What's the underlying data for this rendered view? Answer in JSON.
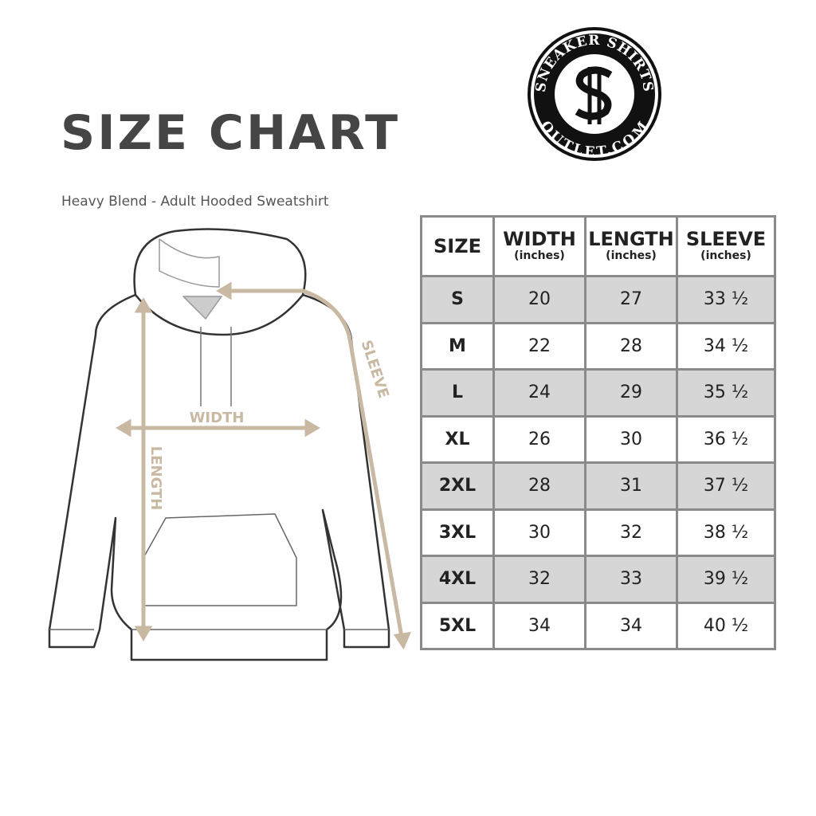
{
  "header": {
    "title": "SIZE CHART",
    "subtitle": "Heavy Blend - Adult Hooded Sweatshirt"
  },
  "logo": {
    "top_text": "SNEAKER SHIRTS",
    "bottom_text": "OUTLET.COM",
    "monogram": "SS"
  },
  "diagram": {
    "width_label": "WIDTH",
    "length_label": "LENGTH",
    "sleeve_label": "SLEEVE",
    "measure_color": "#c9b9a2"
  },
  "table": {
    "columns": [
      {
        "label": "SIZE",
        "unit": ""
      },
      {
        "label": "WIDTH",
        "unit": "(inches)"
      },
      {
        "label": "LENGTH",
        "unit": "(inches)"
      },
      {
        "label": "SLEEVE",
        "unit": "(inches)"
      }
    ],
    "rows": [
      [
        "S",
        "20",
        "27",
        "33 ½"
      ],
      [
        "M",
        "22",
        "28",
        "34 ½"
      ],
      [
        "L",
        "24",
        "29",
        "35 ½"
      ],
      [
        "XL",
        "26",
        "30",
        "36 ½"
      ],
      [
        "2XL",
        "28",
        "31",
        "37 ½"
      ],
      [
        "3XL",
        "30",
        "32",
        "38 ½"
      ],
      [
        "4XL",
        "32",
        "33",
        "39 ½"
      ],
      [
        "5XL",
        "34",
        "34",
        "40 ½"
      ]
    ]
  }
}
